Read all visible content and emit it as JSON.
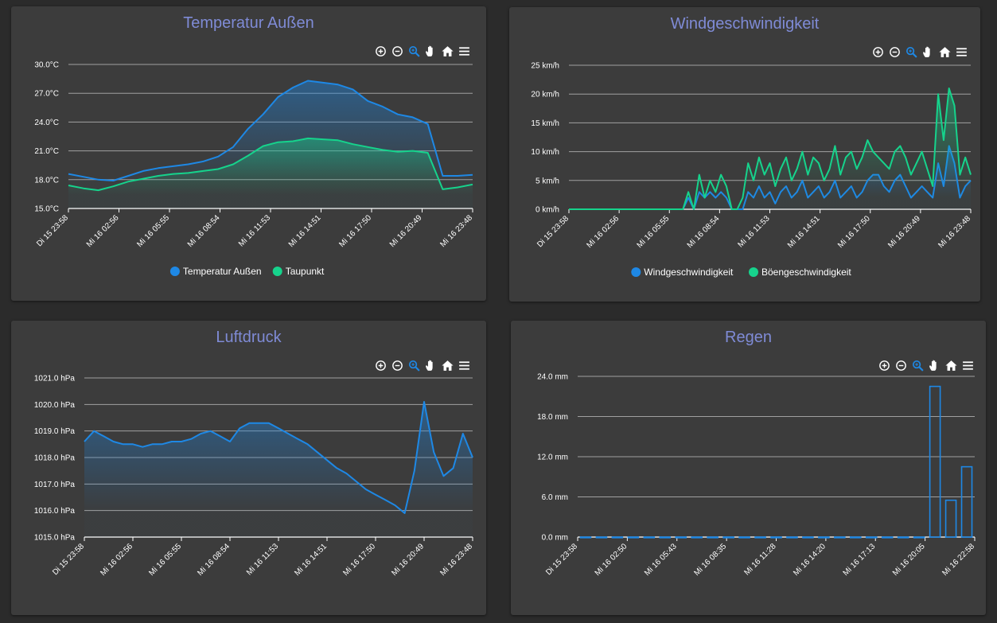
{
  "colors": {
    "blue": "#1e88e5",
    "green": "#16d38c",
    "title": "#7f8bd6",
    "card": "#3c3c3c",
    "grid": "#9a9a9a"
  },
  "toolbar_icons": [
    "zoom-in-icon",
    "zoom-out-icon",
    "selection-zoom-icon",
    "pan-icon",
    "home-icon",
    "menu-icon"
  ],
  "cards": {
    "temp": {
      "title": "Temperatur Außen"
    },
    "wind": {
      "title": "Windgeschwindigkeit"
    },
    "pressure": {
      "title": "Luftdruck"
    },
    "rain": {
      "title": "Regen"
    }
  },
  "chart_data": [
    {
      "id": "temp",
      "type": "area",
      "title": "Temperatur Außen",
      "ylim": [
        15,
        30
      ],
      "yticks": [
        "15.0°C",
        "18.0°C",
        "21.0°C",
        "24.0°C",
        "27.0°C",
        "30.0°C"
      ],
      "xticks": [
        "Di 15 23:58",
        "Mi 16 02:56",
        "Mi 16 05:55",
        "Mi 16 08:54",
        "Mi 16 11:53",
        "Mi 16 14:51",
        "Mi 16 17:50",
        "Mi 16 20:49",
        "Mi 16 23:48"
      ],
      "legend": "bottom",
      "grid": true,
      "series": [
        {
          "name": "Temperatur Außen",
          "color": "#1e88e5",
          "values": [
            18.6,
            18.3,
            18.0,
            17.9,
            18.4,
            18.9,
            19.2,
            19.4,
            19.6,
            19.9,
            20.4,
            21.4,
            23.3,
            24.8,
            26.6,
            27.6,
            28.3,
            28.1,
            27.9,
            27.4,
            26.2,
            25.6,
            24.8,
            24.5,
            23.8,
            18.4,
            18.4,
            18.5
          ]
        },
        {
          "name": "Taupunkt",
          "color": "#16d38c",
          "values": [
            17.4,
            17.1,
            16.9,
            17.3,
            17.8,
            18.1,
            18.4,
            18.6,
            18.7,
            18.9,
            19.1,
            19.6,
            20.5,
            21.5,
            21.9,
            22.0,
            22.3,
            22.2,
            22.1,
            21.7,
            21.4,
            21.1,
            20.9,
            21.0,
            20.8,
            17.0,
            17.2,
            17.5
          ]
        }
      ]
    },
    {
      "id": "wind",
      "type": "area",
      "title": "Windgeschwindigkeit",
      "ylim": [
        0,
        25
      ],
      "yticks": [
        "0 km/h",
        "5 km/h",
        "10 km/h",
        "15 km/h",
        "20 km/h",
        "25 km/h"
      ],
      "xticks": [
        "Di 15 23:58",
        "Mi 16 02:56",
        "Mi 16 05:55",
        "Mi 16 08:54",
        "Mi 16 11:53",
        "Mi 16 14:51",
        "Mi 16 17:50",
        "Mi 16 20:49",
        "Mi 16 23:48"
      ],
      "legend": "bottom",
      "grid": true,
      "series": [
        {
          "name": "Windgeschwindigkeit",
          "color": "#1e88e5",
          "values": [
            0,
            0,
            0,
            0,
            0,
            0,
            0,
            0,
            0,
            0,
            0,
            0,
            0,
            0,
            0,
            0,
            0,
            0,
            0,
            0,
            0,
            0,
            2,
            0,
            3,
            2,
            3,
            2,
            3,
            2,
            0,
            0,
            0,
            3,
            2,
            4,
            2,
            3,
            1,
            3,
            4,
            2,
            3,
            5,
            2,
            3,
            4,
            2,
            3,
            5,
            2,
            3,
            4,
            2,
            3,
            5,
            6,
            6,
            4,
            3,
            5,
            6,
            4,
            2,
            3,
            4,
            3,
            2,
            8,
            4,
            11,
            8,
            2,
            4,
            5
          ]
        },
        {
          "name": "Böengeschwindigkeit",
          "color": "#16d38c",
          "values": [
            0,
            0,
            0,
            0,
            0,
            0,
            0,
            0,
            0,
            0,
            0,
            0,
            0,
            0,
            0,
            0,
            0,
            0,
            0,
            0,
            0,
            0,
            3,
            0,
            6,
            2,
            5,
            3,
            6,
            4,
            0,
            0,
            2,
            8,
            5,
            9,
            6,
            8,
            4,
            7,
            9,
            5,
            7,
            10,
            6,
            9,
            8,
            5,
            7,
            11,
            6,
            9,
            10,
            7,
            9,
            12,
            10,
            9,
            8,
            7,
            10,
            11,
            9,
            6,
            8,
            10,
            7,
            4,
            20,
            12,
            21,
            18,
            6,
            9,
            6
          ]
        }
      ]
    },
    {
      "id": "pressure",
      "type": "area",
      "title": "Luftdruck",
      "ylim": [
        1015,
        1021
      ],
      "yticks": [
        "1015.0 hPa",
        "1016.0 hPa",
        "1017.0 hPa",
        "1018.0 hPa",
        "1019.0 hPa",
        "1020.0 hPa",
        "1021.0 hPa"
      ],
      "xticks": [
        "Di 15 23:58",
        "Mi 16 02:56",
        "Mi 16 05:55",
        "Mi 16 08:54",
        "Mi 16 11:53",
        "Mi 16 14:51",
        "Mi 16 17:50",
        "Mi 16 20:49",
        "Mi 16 23:48"
      ],
      "grid": true,
      "series": [
        {
          "name": "Luftdruck",
          "color": "#1e88e5",
          "values": [
            1018.6,
            1019.0,
            1018.8,
            1018.6,
            1018.5,
            1018.5,
            1018.4,
            1018.5,
            1018.5,
            1018.6,
            1018.6,
            1018.7,
            1018.9,
            1019.0,
            1018.8,
            1018.6,
            1019.1,
            1019.3,
            1019.3,
            1019.3,
            1019.1,
            1018.9,
            1018.7,
            1018.5,
            1018.2,
            1017.9,
            1017.6,
            1017.4,
            1017.1,
            1016.8,
            1016.6,
            1016.4,
            1016.2,
            1015.9,
            1017.5,
            1020.1,
            1018.2,
            1017.3,
            1017.6,
            1018.9,
            1018.0
          ]
        }
      ]
    },
    {
      "id": "rain",
      "type": "bar",
      "title": "Regen",
      "ylim": [
        0,
        24
      ],
      "yticks": [
        "0.0 mm",
        "6.0 mm",
        "12.0 mm",
        "18.0 mm",
        "24.0 mm"
      ],
      "xticks": [
        "Di 15 23:58",
        "Mi 16 02:50",
        "Mi 16 05:43",
        "Mi 16 08:35",
        "Mi 16 11:28",
        "Mi 16 14:20",
        "Mi 16 17:13",
        "Mi 16 20:05",
        "Mi 16 22:58"
      ],
      "grid": true,
      "series": [
        {
          "name": "Regen",
          "color": "#1e88e5",
          "values": [
            0,
            0,
            0,
            0,
            0,
            0,
            0,
            0,
            0,
            0,
            0,
            0,
            0,
            0,
            0,
            0,
            0,
            0,
            0,
            0,
            0,
            0,
            22.5,
            5.5,
            10.5
          ]
        }
      ]
    }
  ]
}
